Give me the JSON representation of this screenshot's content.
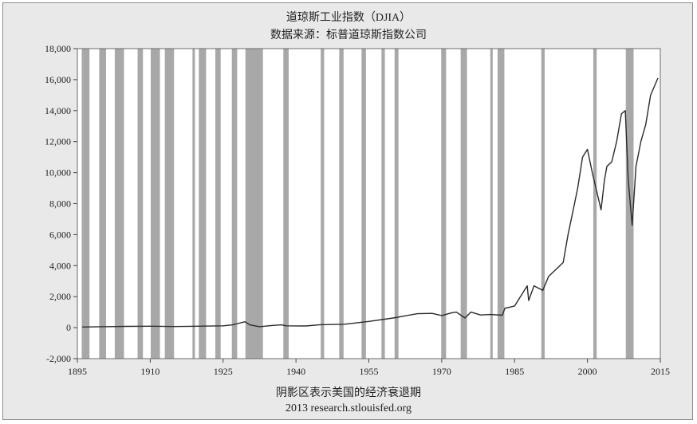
{
  "chart_data": {
    "type": "line",
    "title": "道琼斯工业指数（DJIA）",
    "subtitle": "数据来源：标普道琼斯指数公司",
    "xlabel": "阴影区表示美国的经济衰退期",
    "source_note": "2013 research.stlouisfed.org",
    "xlim": [
      1895,
      2015
    ],
    "ylim": [
      -2000,
      18000
    ],
    "x_ticks": [
      1895,
      1910,
      1925,
      1940,
      1955,
      1970,
      1985,
      2000,
      2015
    ],
    "y_ticks": [
      -2000,
      0,
      2000,
      4000,
      6000,
      8000,
      10000,
      12000,
      14000,
      16000,
      18000
    ],
    "y_tick_labels": [
      "-2,000",
      "0",
      "2,000",
      "4,000",
      "6,000",
      "8,000",
      "10,000",
      "12,000",
      "14,000",
      "16,000",
      "18,000"
    ],
    "grid": false,
    "colors": {
      "line": "#2a2a2a",
      "recession": "#a8a8a8",
      "panel": "#e9e9e9",
      "plot": "#ffffff"
    },
    "recessions": [
      [
        1895.9,
        1897.5
      ],
      [
        1899.5,
        1900.9
      ],
      [
        1902.7,
        1904.6
      ],
      [
        1907.4,
        1908.5
      ],
      [
        1910.1,
        1912.0
      ],
      [
        1913.0,
        1914.9
      ],
      [
        1918.7,
        1919.2
      ],
      [
        1920.0,
        1921.5
      ],
      [
        1923.4,
        1924.5
      ],
      [
        1926.8,
        1927.9
      ],
      [
        1929.6,
        1933.2
      ],
      [
        1937.4,
        1938.5
      ],
      [
        1945.1,
        1945.8
      ],
      [
        1948.9,
        1949.8
      ],
      [
        1953.5,
        1954.4
      ],
      [
        1957.6,
        1958.3
      ],
      [
        1960.3,
        1961.1
      ],
      [
        1969.9,
        1970.9
      ],
      [
        1973.9,
        1975.2
      ],
      [
        1980.0,
        1980.5
      ],
      [
        1981.5,
        1982.9
      ],
      [
        1990.5,
        1991.2
      ],
      [
        2001.2,
        2001.9
      ],
      [
        2007.9,
        2009.5
      ]
    ],
    "series": [
      {
        "x": [
          1896,
          1900,
          1905,
          1910,
          1915,
          1920,
          1925,
          1927,
          1928,
          1929.5,
          1930.5,
          1932.5,
          1935,
          1937,
          1938,
          1942,
          1945,
          1950,
          1955,
          1960,
          1965,
          1968,
          1970,
          1972,
          1973,
          1974.8,
          1976,
          1978,
          1980,
          1982.5,
          1983,
          1985,
          1987.6,
          1987.9,
          1989,
          1990.8,
          1992,
          1995,
          1996,
          1997,
          1998,
          1999,
          2000,
          2001,
          2002.8,
          2003.5,
          2004,
          2005,
          2006,
          2007,
          2007.8,
          2008.4,
          2009.2,
          2010,
          2011,
          2012,
          2013,
          2014.5
        ],
        "y": [
          40,
          60,
          80,
          90,
          70,
          90,
          120,
          180,
          260,
          380,
          180,
          60,
          140,
          180,
          120,
          110,
          190,
          220,
          400,
          620,
          900,
          920,
          780,
          950,
          1000,
          620,
          1000,
          820,
          850,
          800,
          1250,
          1400,
          2700,
          1750,
          2700,
          2400,
          3300,
          4200,
          6000,
          7500,
          9000,
          11000,
          11500,
          10000,
          7600,
          9500,
          10400,
          10700,
          12000,
          13800,
          14000,
          9500,
          6600,
          10400,
          12000,
          13100,
          15000,
          16100
        ]
      }
    ]
  }
}
